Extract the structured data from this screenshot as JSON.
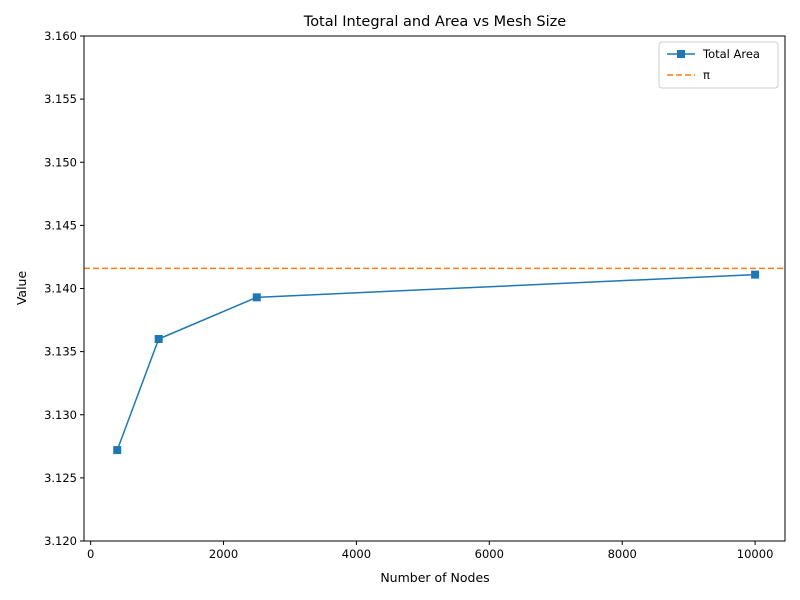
{
  "chart_data": {
    "type": "line",
    "title": "Total Integral and Area vs Mesh Size",
    "xlabel": "Number of Nodes",
    "ylabel": "Value",
    "xlim": [
      -100,
      10450
    ],
    "ylim": [
      3.12,
      3.16
    ],
    "xticks": [
      0,
      2000,
      4000,
      6000,
      8000,
      10000
    ],
    "xtick_labels": [
      "0",
      "2000",
      "4000",
      "6000",
      "8000",
      "10000"
    ],
    "yticks": [
      3.12,
      3.125,
      3.13,
      3.135,
      3.14,
      3.145,
      3.15,
      3.155,
      3.16
    ],
    "ytick_labels": [
      "3.120",
      "3.125",
      "3.130",
      "3.135",
      "3.140",
      "3.145",
      "3.150",
      "3.155",
      "3.160"
    ],
    "grid": false,
    "legend": "top-right",
    "series": [
      {
        "name": "Total Area",
        "color": "#1f77b4",
        "marker": "square",
        "style": "solid",
        "x": [
          400,
          1024,
          2500,
          10000
        ],
        "y": [
          3.1272,
          3.136,
          3.1393,
          3.1411
        ]
      }
    ],
    "reference_lines": [
      {
        "name": "π",
        "orientation": "horizontal",
        "value": 3.14159,
        "color": "#ff7f0e",
        "style": "dashed"
      }
    ]
  }
}
